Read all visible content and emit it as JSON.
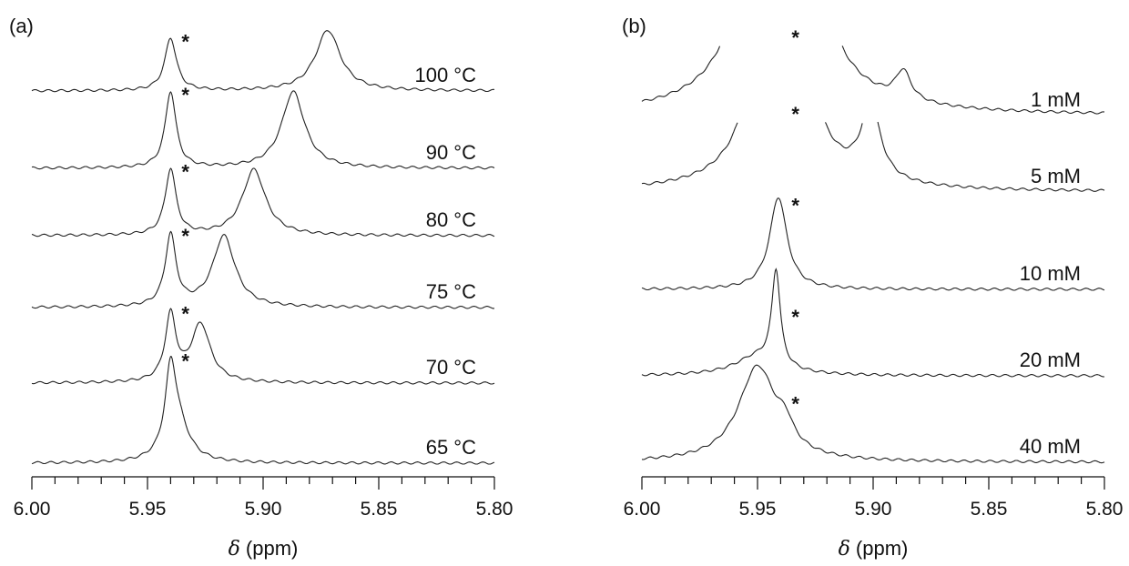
{
  "chart_data": [
    {
      "type": "line",
      "panel_label": "(a)",
      "xlabel": "(ppm)",
      "xlabel_symbol": "δ",
      "xlim": [
        6.0,
        5.8
      ],
      "x_reversed": true,
      "x_ticks": [
        "6.00",
        "5.95",
        "5.90",
        "5.85",
        "5.80"
      ],
      "reference_marker": "*",
      "reference_shift": 5.94,
      "series": [
        {
          "name": "100 °C",
          "peaks": [
            {
              "x": 5.94,
              "h": 1.0,
              "w": 0.003
            },
            {
              "x": 5.872,
              "h": 1.15,
              "w": 0.0065
            }
          ]
        },
        {
          "name": "90 °C",
          "peaks": [
            {
              "x": 5.94,
              "h": 1.45,
              "w": 0.0028
            },
            {
              "x": 5.887,
              "h": 1.45,
              "w": 0.006
            }
          ]
        },
        {
          "name": "80 °C",
          "peaks": [
            {
              "x": 5.94,
              "h": 1.25,
              "w": 0.0028
            },
            {
              "x": 5.904,
              "h": 1.25,
              "w": 0.006
            }
          ]
        },
        {
          "name": "75 °C",
          "peaks": [
            {
              "x": 5.94,
              "h": 1.35,
              "w": 0.0028
            },
            {
              "x": 5.917,
              "h": 1.35,
              "w": 0.0058
            }
          ]
        },
        {
          "name": "70 °C",
          "peaks": [
            {
              "x": 5.94,
              "h": 1.25,
              "w": 0.0028
            },
            {
              "x": 5.927,
              "h": 1.1,
              "w": 0.005
            }
          ]
        },
        {
          "name": "65 °C",
          "peaks": [
            {
              "x": 5.94,
              "h": 1.45,
              "w": 0.0028
            },
            {
              "x": 5.937,
              "h": 0.7,
              "w": 0.006
            }
          ]
        }
      ]
    },
    {
      "type": "line",
      "panel_label": "(b)",
      "xlabel": "(ppm)",
      "xlabel_symbol": "δ",
      "xlim": [
        6.0,
        5.8
      ],
      "x_reversed": true,
      "x_ticks": [
        "6.00",
        "5.95",
        "5.90",
        "5.85",
        "5.80"
      ],
      "reference_marker": "*",
      "reference_shift": 5.94,
      "series": [
        {
          "name": "1 mM",
          "truncated": true,
          "peaks": [
            {
              "x": 5.94,
              "h": 20.0,
              "w": 0.007
            },
            {
              "x": 5.887,
              "h": 0.55,
              "w": 0.004
            }
          ]
        },
        {
          "name": "5 mM",
          "truncated": true,
          "peaks": [
            {
              "x": 5.94,
              "h": 12.0,
              "w": 0.0065
            },
            {
              "x": 5.901,
              "h": 1.4,
              "w": 0.005
            }
          ]
        },
        {
          "name": "10 mM",
          "peaks": [
            {
              "x": 5.941,
              "h": 1.75,
              "w": 0.0045
            }
          ]
        },
        {
          "name": "20 mM",
          "peaks": [
            {
              "x": 5.942,
              "h": 1.8,
              "w": 0.0022
            },
            {
              "x": 5.95,
              "h": 0.35,
              "w": 0.012
            }
          ]
        },
        {
          "name": "40 mM",
          "peaks": [
            {
              "x": 5.95,
              "h": 1.8,
              "w": 0.01
            },
            {
              "x": 5.938,
              "h": 0.35,
              "w": 0.004
            }
          ]
        }
      ]
    }
  ]
}
